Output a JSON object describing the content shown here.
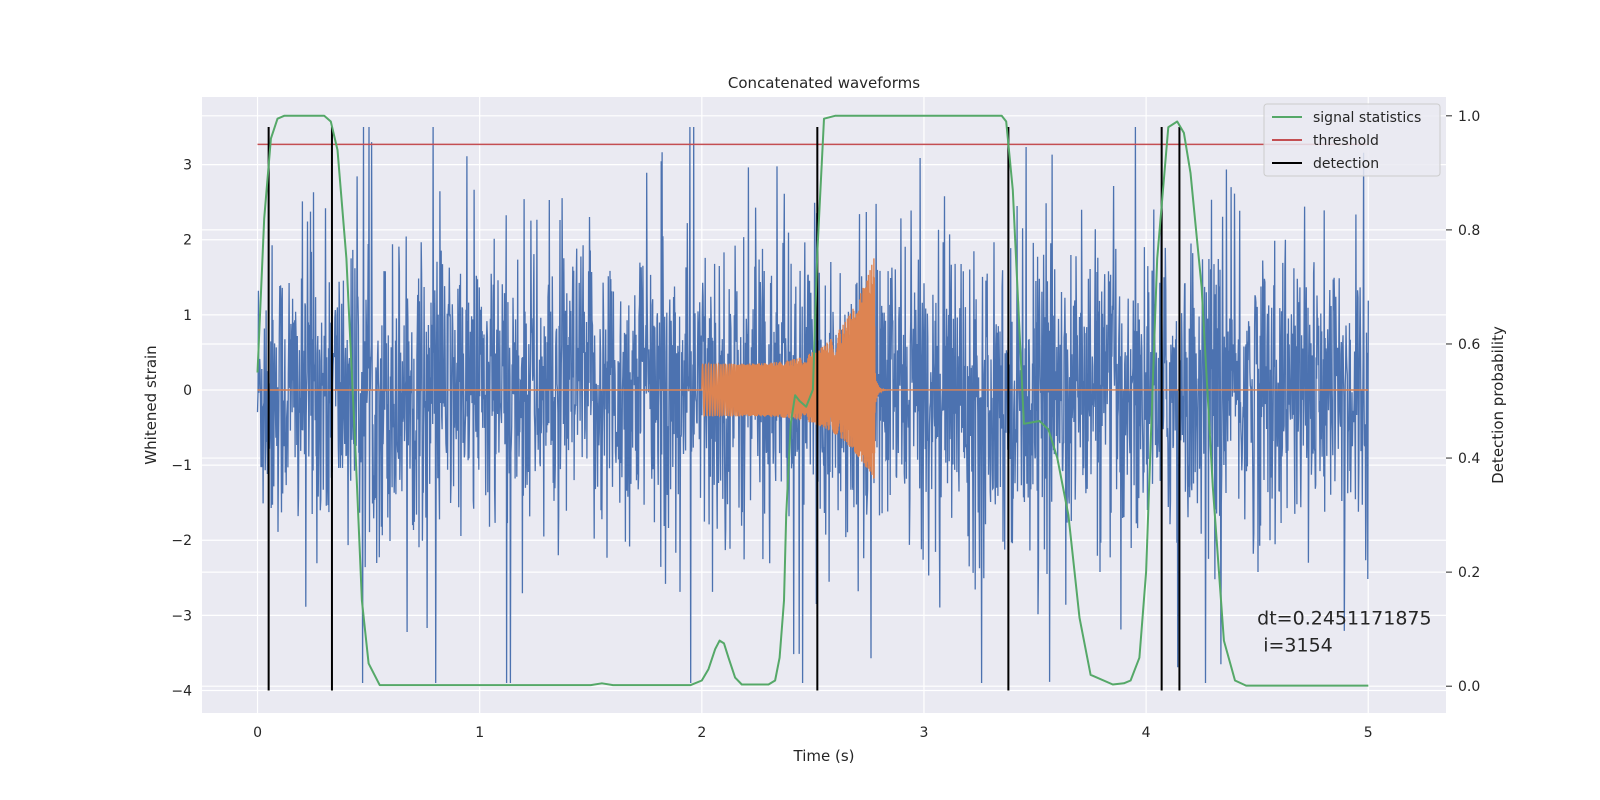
{
  "chart_data": {
    "type": "line",
    "title": "Concatenated waveforms",
    "xlabel": "Time (s)",
    "ylabel": "Whitened strain",
    "y2label": "Detection probability",
    "xlim": [
      -0.25,
      5.35
    ],
    "ylim": [
      -4.3,
      3.9
    ],
    "y2lim": [
      -0.047,
      1.033
    ],
    "x_ticks": [
      0,
      1,
      2,
      3,
      4,
      5
    ],
    "y_ticks": [
      -4,
      -3,
      -2,
      -1,
      0,
      1,
      2,
      3
    ],
    "y2_ticks": [
      0.0,
      0.2,
      0.4,
      0.6,
      0.8,
      1.0
    ],
    "y2_tick_labels": [
      "0.0",
      "0.2",
      "0.4",
      "0.6",
      "0.8",
      "1.0"
    ],
    "grid": true,
    "legend_position": "top-right",
    "series": [
      {
        "key": "strain",
        "axis": "left",
        "color": "#4c72b0",
        "description": "whitened detector noise, 0 to 5 s, amplitude roughly within -3.5 to 3.5",
        "x_range": [
          0,
          5
        ]
      },
      {
        "key": "injected",
        "axis": "left",
        "color": "#dd8452",
        "chirp_window": [
          2.0,
          2.78
        ],
        "chirp_peak": 1.8,
        "chirp_trough": -1.25
      },
      {
        "name": "signal statistics",
        "axis": "right",
        "color": "#55a868",
        "x": [
          0.0,
          0.03,
          0.06,
          0.09,
          0.12,
          0.15,
          0.3,
          0.33,
          0.36,
          0.4,
          0.44,
          0.47,
          0.5,
          0.55,
          1.5,
          1.55,
          1.6,
          1.95,
          2.0,
          2.03,
          2.06,
          2.08,
          2.1,
          2.12,
          2.15,
          2.18,
          2.3,
          2.33,
          2.35,
          2.37,
          2.38,
          2.4,
          2.42,
          2.44,
          2.47,
          2.5,
          2.52,
          2.55,
          2.6,
          3.35,
          3.37,
          3.4,
          3.45,
          3.52,
          3.56,
          3.6,
          3.65,
          3.7,
          3.75,
          3.85,
          3.9,
          3.93,
          3.97,
          4.0,
          4.05,
          4.1,
          4.14,
          4.17,
          4.2,
          4.25,
          4.3,
          4.35,
          4.4,
          4.45,
          5.0
        ],
        "values": [
          0.55,
          0.82,
          0.96,
          0.995,
          1.0,
          1.0,
          1.0,
          0.99,
          0.94,
          0.75,
          0.42,
          0.15,
          0.04,
          0.002,
          0.002,
          0.005,
          0.002,
          0.002,
          0.01,
          0.03,
          0.065,
          0.08,
          0.075,
          0.05,
          0.015,
          0.003,
          0.003,
          0.01,
          0.05,
          0.15,
          0.3,
          0.46,
          0.51,
          0.5,
          0.49,
          0.52,
          0.76,
          0.995,
          1.0,
          1.0,
          0.99,
          0.87,
          0.46,
          0.465,
          0.45,
          0.4,
          0.3,
          0.12,
          0.02,
          0.003,
          0.005,
          0.01,
          0.05,
          0.2,
          0.75,
          0.98,
          0.99,
          0.97,
          0.9,
          0.7,
          0.35,
          0.08,
          0.01,
          0.001,
          0.001
        ]
      },
      {
        "name": "threshold",
        "axis": "right",
        "color": "#c44e52",
        "x": [
          0.0,
          5.0
        ],
        "values": [
          0.95,
          0.95
        ]
      },
      {
        "name": "detection",
        "axis": "left",
        "color": "#000000",
        "vlines_x": [
          0.05,
          0.335,
          2.52,
          3.38,
          4.07,
          4.15
        ],
        "vline_range": [
          -4.0,
          3.5
        ]
      }
    ],
    "annotation": {
      "lines": [
        "dt=0.2451171875",
        " i=3154"
      ],
      "x": 4.5,
      "y": -3.0
    }
  }
}
